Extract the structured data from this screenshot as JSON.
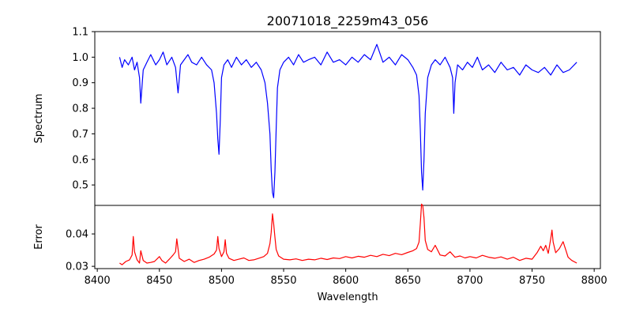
{
  "chart_data": [
    {
      "type": "line",
      "title": "20071018_2259m43_056",
      "xlabel": "",
      "ylabel": "Spectrum",
      "xlim": [
        8398,
        8805
      ],
      "ylim": [
        0.42,
        1.1
      ],
      "xticks": [
        8400,
        8450,
        8500,
        8550,
        8600,
        8650,
        8700,
        8750,
        8800
      ],
      "yticks": [
        0.5,
        0.6,
        0.7,
        0.8,
        0.9,
        1.0,
        1.1
      ],
      "ytick_labels": [
        "0.5",
        "0.6",
        "0.7",
        "0.8",
        "0.9",
        "1.0",
        "1.1"
      ],
      "grid": false,
      "color": "#0000ff",
      "series": [
        {
          "x": [
            8418,
            8420,
            8422,
            8425,
            8428,
            8430,
            8432,
            8434,
            8435,
            8437,
            8440,
            8443,
            8447,
            8450,
            8453,
            8456,
            8460,
            8463,
            8465,
            8467,
            8470,
            8473,
            8476,
            8480,
            8484,
            8488,
            8492,
            8494,
            8496,
            8497,
            8498,
            8499,
            8500,
            8502,
            8505,
            8508,
            8512,
            8516,
            8520,
            8524,
            8528,
            8532,
            8535,
            8537,
            8539,
            8540,
            8541,
            8542,
            8543,
            8544,
            8545,
            8547,
            8550,
            8554,
            8558,
            8562,
            8566,
            8570,
            8575,
            8580,
            8585,
            8590,
            8595,
            8600,
            8605,
            8610,
            8615,
            8620,
            8625,
            8630,
            8635,
            8640,
            8645,
            8650,
            8654,
            8657,
            8659,
            8660,
            8661,
            8662,
            8663,
            8664,
            8666,
            8669,
            8672,
            8676,
            8680,
            8684,
            8686,
            8687,
            8688,
            8690,
            8694,
            8698,
            8702,
            8706,
            8710,
            8715,
            8720,
            8725,
            8730,
            8735,
            8740,
            8745,
            8750,
            8755,
            8760,
            8765,
            8770,
            8775,
            8780,
            8786
          ],
          "y": [
            1.0,
            0.96,
            0.99,
            0.97,
            1.0,
            0.95,
            0.98,
            0.92,
            0.82,
            0.95,
            0.98,
            1.01,
            0.97,
            0.99,
            1.02,
            0.97,
            1.0,
            0.96,
            0.86,
            0.97,
            0.99,
            1.01,
            0.98,
            0.97,
            1.0,
            0.97,
            0.95,
            0.9,
            0.78,
            0.68,
            0.62,
            0.75,
            0.92,
            0.97,
            0.99,
            0.96,
            1.0,
            0.97,
            0.99,
            0.96,
            0.98,
            0.95,
            0.9,
            0.82,
            0.7,
            0.56,
            0.47,
            0.45,
            0.55,
            0.72,
            0.88,
            0.95,
            0.98,
            1.0,
            0.97,
            1.01,
            0.98,
            0.99,
            1.0,
            0.97,
            1.02,
            0.98,
            0.99,
            0.97,
            1.0,
            0.98,
            1.01,
            0.99,
            1.05,
            0.98,
            1.0,
            0.97,
            1.01,
            0.99,
            0.96,
            0.93,
            0.85,
            0.72,
            0.55,
            0.48,
            0.6,
            0.78,
            0.92,
            0.97,
            0.99,
            0.97,
            1.0,
            0.96,
            0.92,
            0.78,
            0.9,
            0.97,
            0.95,
            0.98,
            0.96,
            1.0,
            0.95,
            0.97,
            0.94,
            0.98,
            0.95,
            0.96,
            0.93,
            0.97,
            0.95,
            0.94,
            0.96,
            0.93,
            0.97,
            0.94,
            0.95,
            0.98
          ]
        }
      ]
    },
    {
      "type": "line",
      "title": "",
      "xlabel": "Wavelength",
      "ylabel": "Error",
      "xlim": [
        8398,
        8805
      ],
      "ylim": [
        0.0293,
        0.0488
      ],
      "xticks": [
        8400,
        8450,
        8500,
        8550,
        8600,
        8650,
        8700,
        8750,
        8800
      ],
      "yticks": [
        0.03,
        0.04
      ],
      "ytick_labels": [
        "0.03",
        "0.04"
      ],
      "grid": false,
      "color": "#ff0000",
      "series": [
        {
          "x": [
            8418,
            8420,
            8423,
            8426,
            8428,
            8429,
            8430,
            8432,
            8434,
            8435,
            8437,
            8440,
            8443,
            8446,
            8450,
            8452,
            8455,
            8458,
            8461,
            8463,
            8464,
            8466,
            8470,
            8474,
            8478,
            8482,
            8486,
            8490,
            8494,
            8496,
            8497,
            8498,
            8500,
            8502,
            8503,
            8504,
            8506,
            8510,
            8514,
            8518,
            8522,
            8526,
            8530,
            8534,
            8537,
            8539,
            8540,
            8541,
            8542,
            8543,
            8544,
            8546,
            8550,
            8555,
            8560,
            8565,
            8570,
            8575,
            8580,
            8585,
            8590,
            8595,
            8600,
            8605,
            8610,
            8615,
            8620,
            8625,
            8630,
            8635,
            8640,
            8645,
            8650,
            8654,
            8657,
            8659,
            8660,
            8661,
            8662,
            8663,
            8664,
            8666,
            8669,
            8672,
            8676,
            8680,
            8684,
            8688,
            8692,
            8696,
            8700,
            8705,
            8710,
            8715,
            8720,
            8725,
            8730,
            8735,
            8740,
            8745,
            8750,
            8754,
            8757,
            8759,
            8761,
            8763,
            8765,
            8766,
            8767,
            8769,
            8772,
            8775,
            8777,
            8779,
            8782,
            8786
          ],
          "y": [
            0.031,
            0.0305,
            0.0315,
            0.032,
            0.0335,
            0.0392,
            0.0345,
            0.032,
            0.031,
            0.0348,
            0.0318,
            0.031,
            0.0312,
            0.0315,
            0.033,
            0.0318,
            0.031,
            0.0322,
            0.0335,
            0.0345,
            0.0385,
            0.0325,
            0.0315,
            0.0322,
            0.0312,
            0.0318,
            0.0322,
            0.0328,
            0.0338,
            0.035,
            0.0392,
            0.0355,
            0.033,
            0.0345,
            0.0382,
            0.034,
            0.0325,
            0.0318,
            0.0322,
            0.0326,
            0.0318,
            0.032,
            0.0325,
            0.033,
            0.034,
            0.037,
            0.0405,
            0.0462,
            0.0432,
            0.039,
            0.0352,
            0.0332,
            0.0322,
            0.032,
            0.0323,
            0.0318,
            0.0322,
            0.032,
            0.0325,
            0.0321,
            0.0326,
            0.0324,
            0.033,
            0.0326,
            0.0331,
            0.0328,
            0.0334,
            0.033,
            0.0337,
            0.0333,
            0.034,
            0.0336,
            0.0343,
            0.0348,
            0.0355,
            0.0375,
            0.043,
            0.0492,
            0.0488,
            0.045,
            0.038,
            0.0352,
            0.0345,
            0.0365,
            0.0335,
            0.0332,
            0.0345,
            0.0328,
            0.0332,
            0.0326,
            0.033,
            0.0326,
            0.0334,
            0.0328,
            0.0325,
            0.0329,
            0.0322,
            0.0328,
            0.0318,
            0.0325,
            0.0322,
            0.0342,
            0.0362,
            0.0348,
            0.0365,
            0.034,
            0.0385,
            0.0412,
            0.0375,
            0.0342,
            0.0355,
            0.0376,
            0.0352,
            0.0328,
            0.0318,
            0.031
          ]
        }
      ]
    }
  ]
}
